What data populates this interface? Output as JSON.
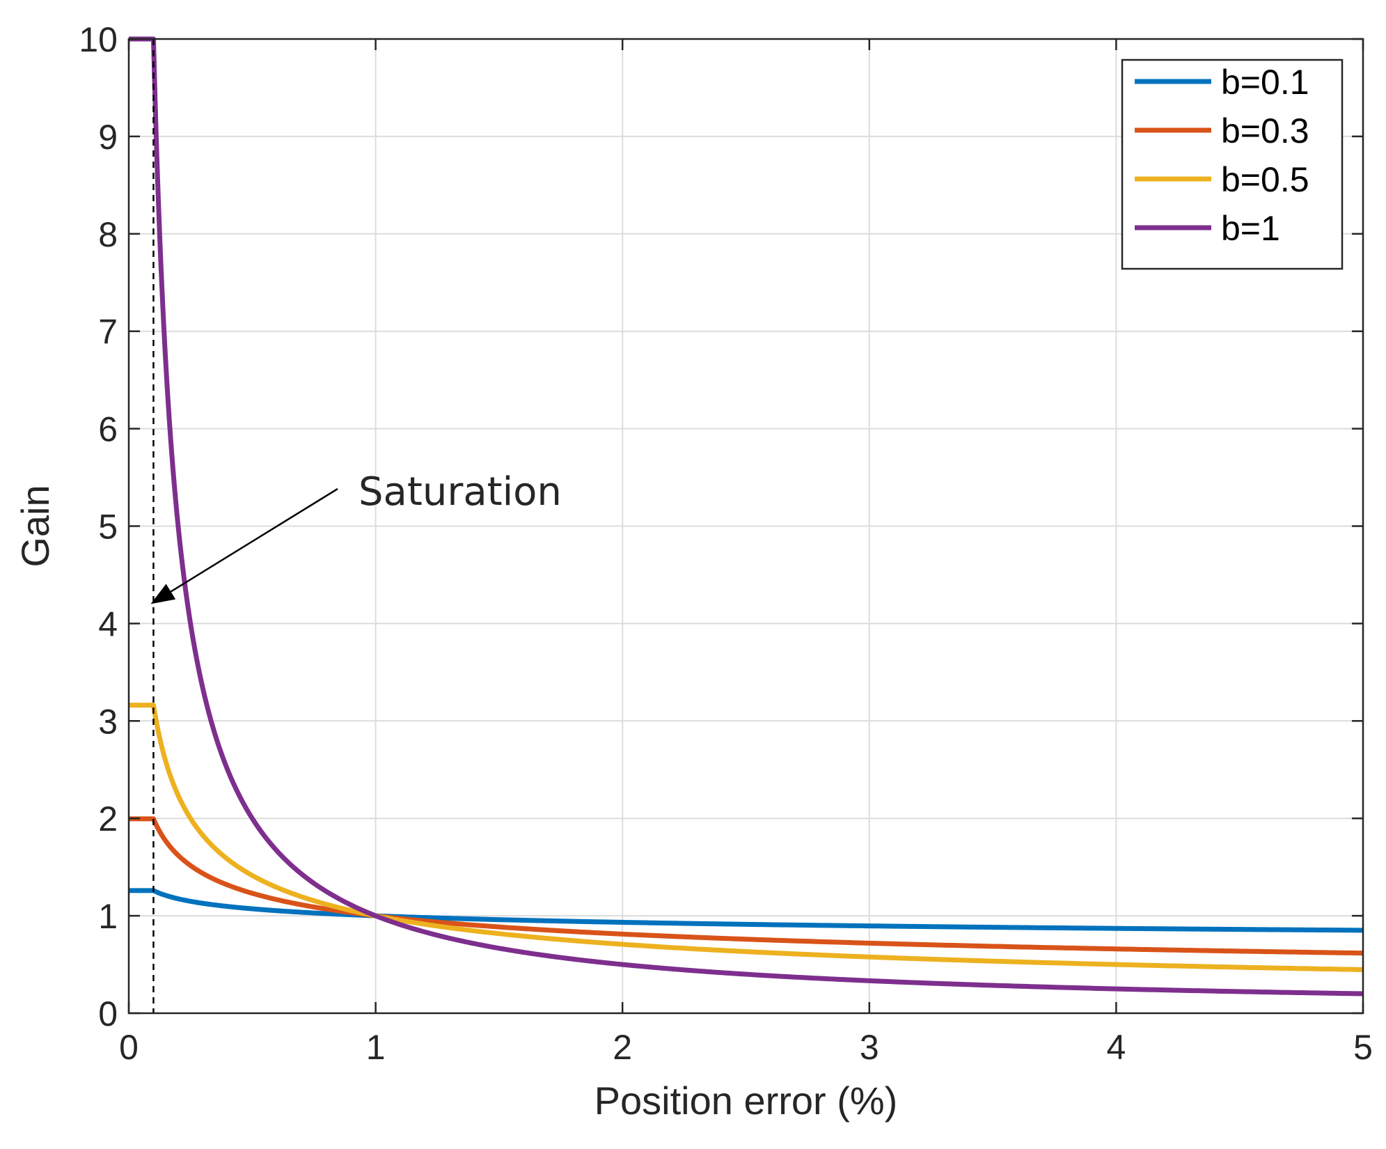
{
  "chart_data": {
    "type": "line",
    "xlabel": "Position error (%)",
    "ylabel": "Gain",
    "xlim": [
      0,
      5
    ],
    "ylim": [
      0,
      10
    ],
    "xticks": [
      "0",
      "1",
      "2",
      "3",
      "4",
      "5"
    ],
    "yticks": [
      "0",
      "1",
      "2",
      "3",
      "4",
      "5",
      "6",
      "7",
      "8",
      "9",
      "10"
    ],
    "grid": true,
    "legend_position": "top-right",
    "saturation_x": 0.1,
    "series": [
      {
        "name": "b=0.1",
        "b": 0.1,
        "color": "#0072BD"
      },
      {
        "name": "b=0.3",
        "b": 0.3,
        "color": "#D95319"
      },
      {
        "name": "b=0.5",
        "b": 0.5,
        "color": "#EDB120"
      },
      {
        "name": "b=1",
        "b": 1,
        "color": "#7E2F8E"
      }
    ],
    "annotation": {
      "text": "Saturation",
      "arrow_target_x": 0.1,
      "arrow_target_y": 4.2
    }
  }
}
